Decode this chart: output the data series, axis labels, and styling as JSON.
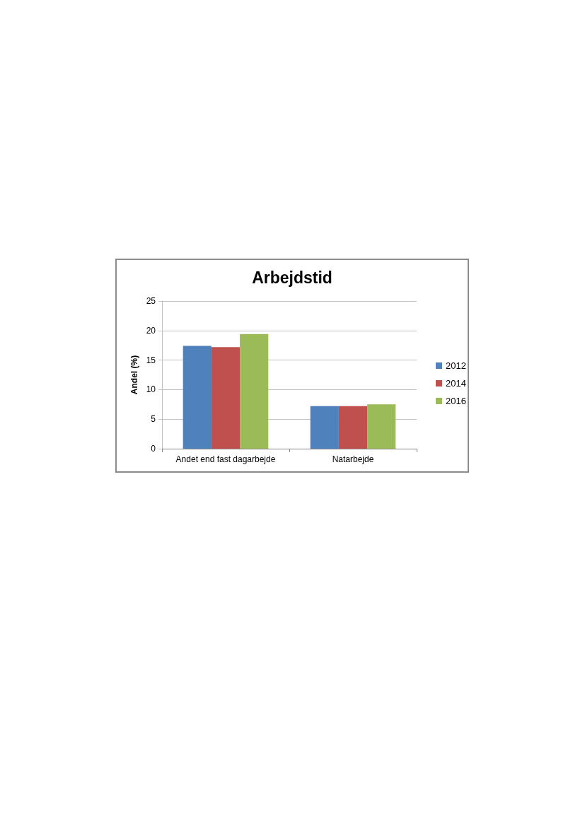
{
  "chart_data": {
    "type": "bar",
    "title": "Arbejdstid",
    "ylabel": "Andel (%)",
    "categories": [
      "Andet end fast dagarbejde",
      "Natarbejde"
    ],
    "series": [
      {
        "name": "2012",
        "color": "#4f81bd",
        "values": [
          17.4,
          7.2
        ]
      },
      {
        "name": "2014",
        "color": "#c0504d",
        "values": [
          17.2,
          7.2
        ]
      },
      {
        "name": "2016",
        "color": "#9bbb59",
        "values": [
          19.4,
          7.5
        ]
      }
    ],
    "ylim": [
      0,
      25
    ],
    "yticks": [
      0,
      5,
      10,
      15,
      20,
      25
    ],
    "grid": "y",
    "legend": "right"
  }
}
